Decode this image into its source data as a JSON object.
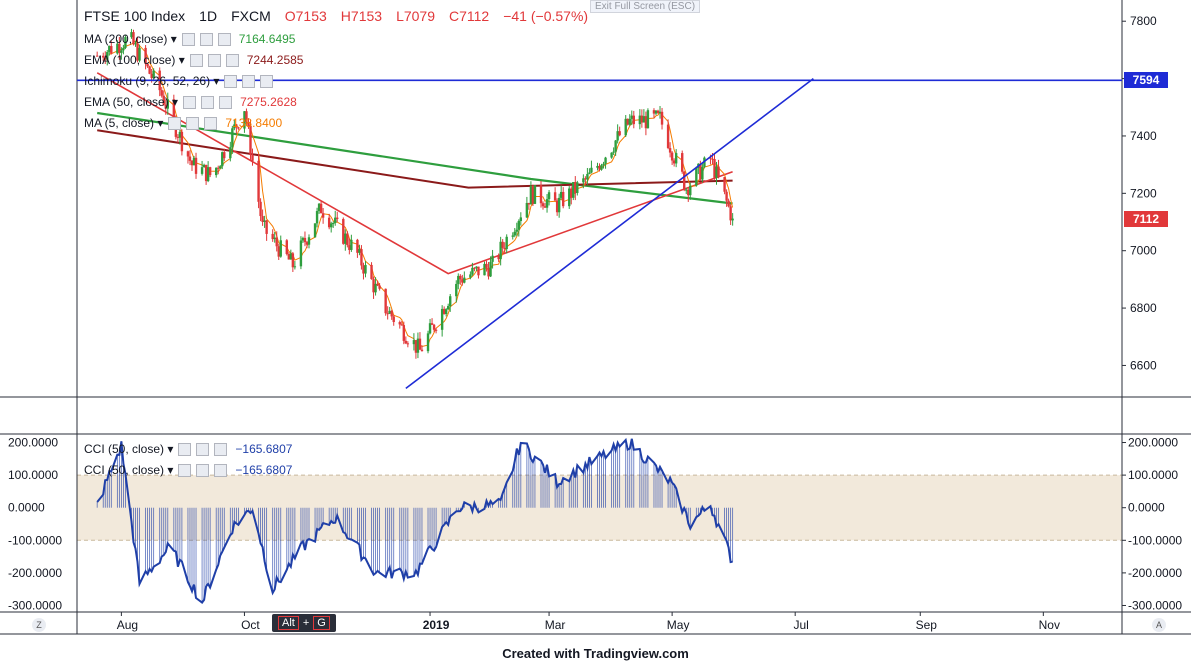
{
  "header": {
    "symbol": "FTSE 100 Index",
    "interval": "1D",
    "source": "FXCM",
    "open": "O7153",
    "high": "H7153",
    "low": "L7079",
    "close": "C7112",
    "change": "−41 (−0.57%)",
    "exit_fullscreen": "Exit Full Screen (ESC)"
  },
  "legend": [
    {
      "name": "MA (200, close)",
      "value": "7164.6495",
      "color": "#2e9e3e"
    },
    {
      "name": "EMA (100, close)",
      "value": "7244.2585",
      "color": "#8b1a1a"
    },
    {
      "name": "Ichimoku (9, 26, 52, 26)",
      "value": "",
      "color": "#2962ff"
    },
    {
      "name": "EMA (50, close)",
      "value": "7275.2628",
      "color": "#e1383a"
    },
    {
      "name": "MA (5, close)",
      "value": "7138.8400",
      "color": "#f57c00"
    }
  ],
  "cci_legend": [
    {
      "name": "CCI (50, close)",
      "value": "−165.6807"
    },
    {
      "name": "CCI (50, close)",
      "value": "−165.6807"
    }
  ],
  "price_tags": {
    "resistance": "7594",
    "last": "7112",
    "resistance_color": "#1e2bd6",
    "last_color": "#e1383a"
  },
  "hotkey": {
    "alt": "Alt",
    "plus": "+",
    "g": "G"
  },
  "footer": "Created with Tradingview.com",
  "corner_left": "Z",
  "corner_right": "A",
  "colors": {
    "up": "#2e9e3e",
    "down": "#e1383a",
    "ma200": "#2e9e3e",
    "ema100": "#8b1a1a",
    "ema50": "#e1383a",
    "ma5": "#f57c00",
    "trend": "#1e2bd6",
    "cci": "#1f3fa8",
    "band": "#efe4d2"
  },
  "chart_data": [
    {
      "type": "candlestick",
      "title": "FTSE 100 Index, 1D, FXCM",
      "x_tick_labels": [
        "Aug",
        "Oct",
        "2019",
        "Mar",
        "May",
        "Jul",
        "Sep",
        "Nov"
      ],
      "y_tick_labels": [
        "6600",
        "6800",
        "7000",
        "7200",
        "7400",
        "7600",
        "7800"
      ],
      "ylim": [
        6490,
        7860
      ],
      "horizontal_level": 7594,
      "trendline": {
        "start": [
          "2018-12-20",
          6520
        ],
        "end": [
          "2019-07-10",
          7600
        ]
      },
      "last_price": 7112,
      "anchors": [
        {
          "date": "2018-07-20",
          "close": 7680
        },
        {
          "date": "2018-08-05",
          "close": 7740
        },
        {
          "date": "2018-08-20",
          "close": 7560
        },
        {
          "date": "2018-09-05",
          "close": 7300
        },
        {
          "date": "2018-09-15",
          "close": 7260
        },
        {
          "date": "2018-10-01",
          "close": 7500
        },
        {
          "date": "2018-10-10",
          "close": 7080
        },
        {
          "date": "2018-10-25",
          "close": 6950
        },
        {
          "date": "2018-11-08",
          "close": 7150
        },
        {
          "date": "2018-11-25",
          "close": 7000
        },
        {
          "date": "2018-12-10",
          "close": 6800
        },
        {
          "date": "2018-12-27",
          "close": 6650
        },
        {
          "date": "2019-01-15",
          "close": 6900
        },
        {
          "date": "2019-02-01",
          "close": 6950
        },
        {
          "date": "2019-02-20",
          "close": 7200
        },
        {
          "date": "2019-03-05",
          "close": 7160
        },
        {
          "date": "2019-03-20",
          "close": 7250
        },
        {
          "date": "2019-04-10",
          "close": 7450
        },
        {
          "date": "2019-04-25",
          "close": 7460
        },
        {
          "date": "2019-05-08",
          "close": 7220
        },
        {
          "date": "2019-05-20",
          "close": 7320
        },
        {
          "date": "2019-05-31",
          "close": 7112
        }
      ],
      "series_endpoints": {
        "MA200": [
          [
            "2018-07-20",
            7480
          ],
          [
            "2019-02-20",
            7250
          ],
          [
            "2019-05-31",
            7164.6495
          ]
        ],
        "EMA100": [
          [
            "2018-07-20",
            7420
          ],
          [
            "2019-01-20",
            7220
          ],
          [
            "2019-05-31",
            7244.2585
          ]
        ],
        "EMA50": [
          [
            "2018-07-20",
            7620
          ],
          [
            "2019-01-10",
            6920
          ],
          [
            "2019-05-31",
            7275.2628
          ]
        ],
        "MA5": [
          [
            "2019-05-31",
            7138.84
          ]
        ]
      }
    },
    {
      "type": "line",
      "title": "CCI (50, close)",
      "y_tick_labels": [
        "200.0000",
        "100.0000",
        "0.0000",
        "-100.0000",
        "-200.0000",
        "-300.0000"
      ],
      "ylim": [
        -320,
        220
      ],
      "band": [
        -100,
        100
      ],
      "last_value": -165.6807,
      "anchors": [
        {
          "date": "2018-07-20",
          "value": 10
        },
        {
          "date": "2018-08-01",
          "value": 190
        },
        {
          "date": "2018-08-10",
          "value": -230
        },
        {
          "date": "2018-08-25",
          "value": -120
        },
        {
          "date": "2018-09-10",
          "value": -290
        },
        {
          "date": "2018-09-25",
          "value": -60
        },
        {
          "date": "2018-10-05",
          "value": 0
        },
        {
          "date": "2018-10-15",
          "value": -250
        },
        {
          "date": "2018-10-30",
          "value": -120
        },
        {
          "date": "2018-11-15",
          "value": -30
        },
        {
          "date": "2018-12-05",
          "value": -200
        },
        {
          "date": "2018-12-25",
          "value": -200
        },
        {
          "date": "2019-01-15",
          "value": 0
        },
        {
          "date": "2019-02-05",
          "value": 10
        },
        {
          "date": "2019-02-15",
          "value": 200
        },
        {
          "date": "2019-03-05",
          "value": 80
        },
        {
          "date": "2019-03-25",
          "value": 150
        },
        {
          "date": "2019-04-10",
          "value": 200
        },
        {
          "date": "2019-04-30",
          "value": 80
        },
        {
          "date": "2019-05-10",
          "value": -50
        },
        {
          "date": "2019-05-20",
          "value": 10
        },
        {
          "date": "2019-05-31",
          "value": -165.6807
        }
      ]
    }
  ]
}
